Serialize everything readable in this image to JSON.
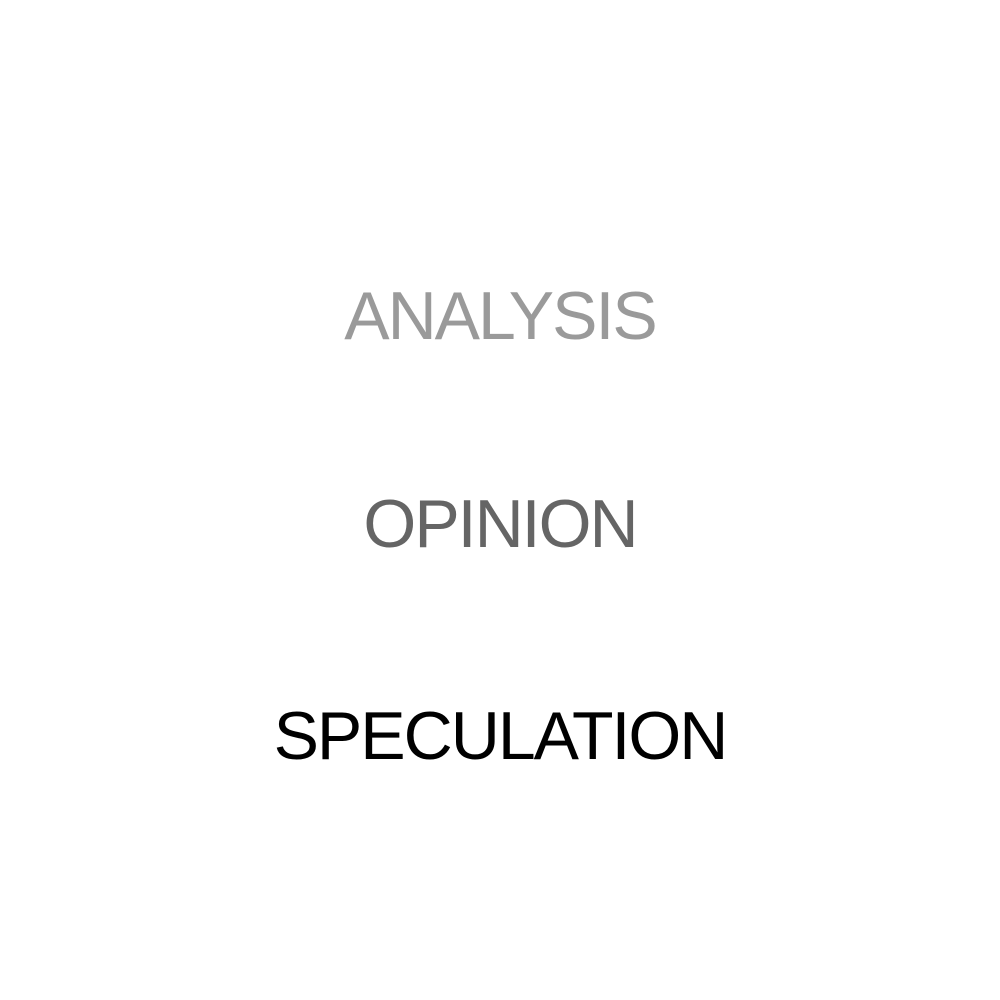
{
  "words": [
    {
      "text": "ANALYSIS",
      "color": "#9a9a9a"
    },
    {
      "text": "OPINION",
      "color": "#656565"
    },
    {
      "text": "SPECULATION",
      "color": "#000000"
    }
  ]
}
